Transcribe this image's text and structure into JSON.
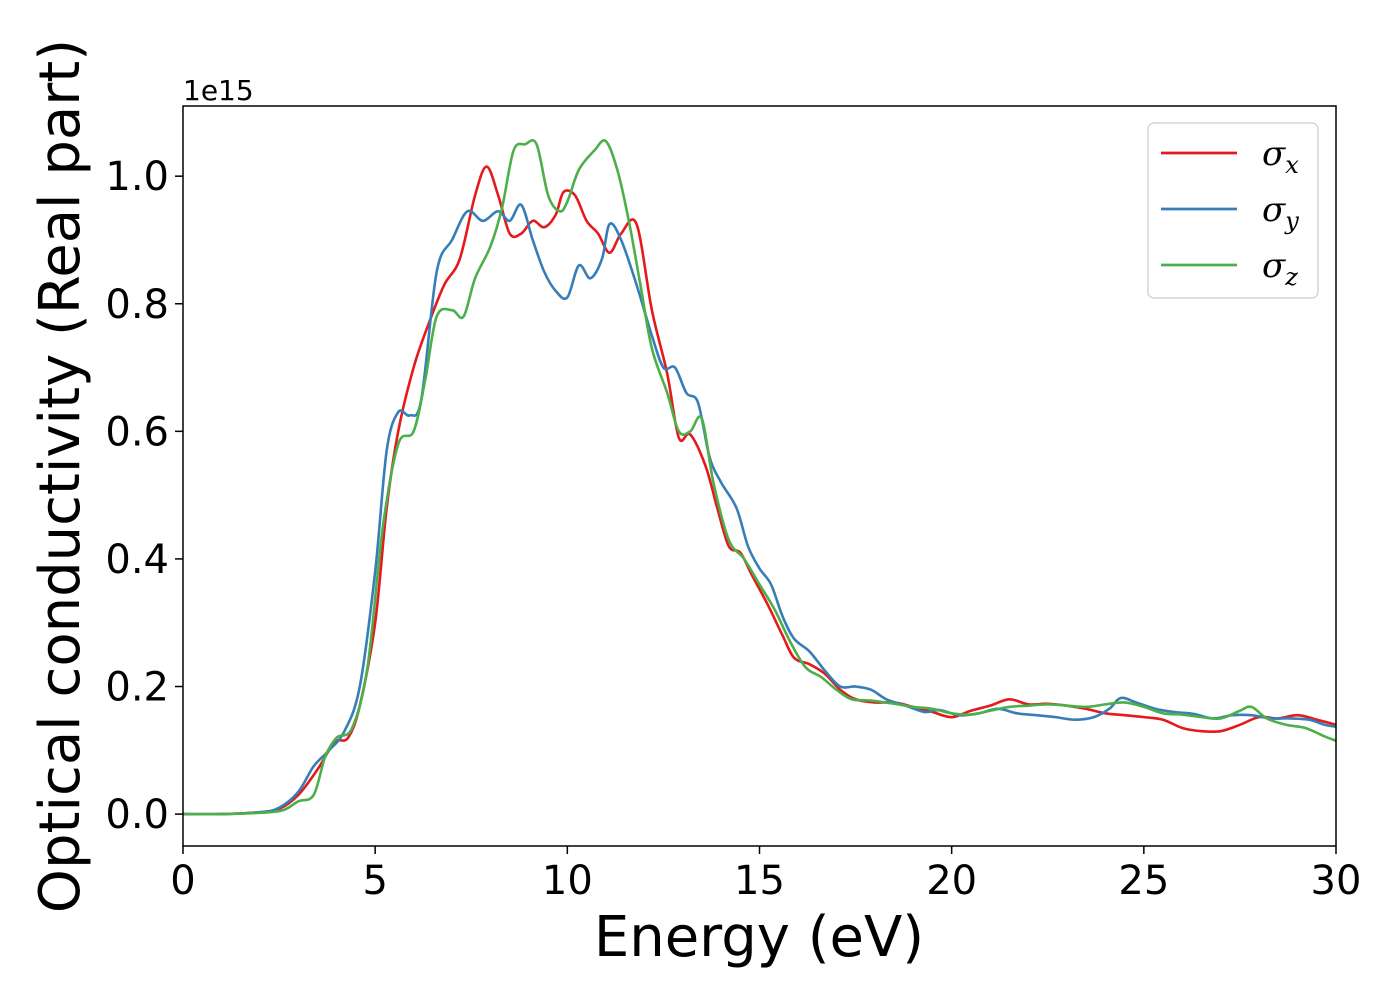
{
  "chart_data": {
    "type": "line",
    "xlabel": "Energy (eV)",
    "ylabel": "Optical conductivity (Real part)",
    "y_offset_text": "1e15",
    "xlim": [
      0,
      30
    ],
    "ylim": [
      -0.05,
      1.11
    ],
    "y_scale_factor": 1000000000000000.0,
    "x_ticks": [
      0,
      5,
      10,
      15,
      20,
      25,
      30
    ],
    "x_tick_labels": [
      "0",
      "5",
      "10",
      "15",
      "20",
      "25",
      "30"
    ],
    "y_ticks": [
      0.0,
      0.2,
      0.4,
      0.6,
      0.8,
      1.0
    ],
    "y_tick_labels": [
      "0.0",
      "0.2",
      "0.4",
      "0.6",
      "0.8",
      "1.0"
    ],
    "grid": false,
    "legend_position": "top-right",
    "colors": {
      "red": "#e41a1c",
      "blue": "#377eb8",
      "green": "#4daf4a"
    },
    "series": [
      {
        "name": "σ",
        "subscript": "x",
        "color": "#e41a1c",
        "points": [
          [
            0,
            0.0
          ],
          [
            1,
            0.0
          ],
          [
            2,
            0.003
          ],
          [
            2.5,
            0.008
          ],
          [
            3,
            0.03
          ],
          [
            3.5,
            0.07
          ],
          [
            3.8,
            0.1
          ],
          [
            4,
            0.115
          ],
          [
            4.3,
            0.12
          ],
          [
            4.6,
            0.17
          ],
          [
            5,
            0.3
          ],
          [
            5.3,
            0.48
          ],
          [
            5.6,
            0.6
          ],
          [
            6,
            0.7
          ],
          [
            6.4,
            0.77
          ],
          [
            6.8,
            0.83
          ],
          [
            7.2,
            0.87
          ],
          [
            7.6,
            0.97
          ],
          [
            7.9,
            1.015
          ],
          [
            8.2,
            0.97
          ],
          [
            8.5,
            0.91
          ],
          [
            8.8,
            0.91
          ],
          [
            9.1,
            0.93
          ],
          [
            9.4,
            0.92
          ],
          [
            9.7,
            0.94
          ],
          [
            9.9,
            0.975
          ],
          [
            10.2,
            0.97
          ],
          [
            10.5,
            0.93
          ],
          [
            10.8,
            0.91
          ],
          [
            11.1,
            0.88
          ],
          [
            11.4,
            0.91
          ],
          [
            11.8,
            0.925
          ],
          [
            12.2,
            0.79
          ],
          [
            12.6,
            0.69
          ],
          [
            12.9,
            0.59
          ],
          [
            13.2,
            0.595
          ],
          [
            13.6,
            0.545
          ],
          [
            13.9,
            0.48
          ],
          [
            14.2,
            0.42
          ],
          [
            14.5,
            0.41
          ],
          [
            14.8,
            0.375
          ],
          [
            15.2,
            0.33
          ],
          [
            15.6,
            0.28
          ],
          [
            15.9,
            0.245
          ],
          [
            16.3,
            0.235
          ],
          [
            16.7,
            0.22
          ],
          [
            17.1,
            0.195
          ],
          [
            17.5,
            0.18
          ],
          [
            18,
            0.175
          ],
          [
            18.5,
            0.175
          ],
          [
            19,
            0.168
          ],
          [
            19.5,
            0.16
          ],
          [
            20,
            0.152
          ],
          [
            20.5,
            0.162
          ],
          [
            21,
            0.17
          ],
          [
            21.5,
            0.18
          ],
          [
            22,
            0.172
          ],
          [
            22.5,
            0.173
          ],
          [
            23,
            0.17
          ],
          [
            23.5,
            0.165
          ],
          [
            24,
            0.158
          ],
          [
            24.5,
            0.155
          ],
          [
            25,
            0.152
          ],
          [
            25.5,
            0.148
          ],
          [
            26,
            0.135
          ],
          [
            26.5,
            0.13
          ],
          [
            27,
            0.13
          ],
          [
            27.5,
            0.14
          ],
          [
            28,
            0.152
          ],
          [
            28.5,
            0.15
          ],
          [
            29,
            0.155
          ],
          [
            29.5,
            0.148
          ],
          [
            30,
            0.14
          ]
        ]
      },
      {
        "name": "σ",
        "subscript": "y",
        "color": "#377eb8",
        "points": [
          [
            0,
            0.0
          ],
          [
            1,
            0.0
          ],
          [
            2,
            0.003
          ],
          [
            2.5,
            0.01
          ],
          [
            3,
            0.035
          ],
          [
            3.4,
            0.075
          ],
          [
            3.8,
            0.1
          ],
          [
            4.2,
            0.13
          ],
          [
            4.6,
            0.2
          ],
          [
            5,
            0.38
          ],
          [
            5.3,
            0.57
          ],
          [
            5.6,
            0.63
          ],
          [
            5.9,
            0.625
          ],
          [
            6.2,
            0.65
          ],
          [
            6.6,
            0.85
          ],
          [
            7,
            0.9
          ],
          [
            7.4,
            0.945
          ],
          [
            7.8,
            0.93
          ],
          [
            8.2,
            0.945
          ],
          [
            8.5,
            0.93
          ],
          [
            8.8,
            0.955
          ],
          [
            9.1,
            0.9
          ],
          [
            9.4,
            0.85
          ],
          [
            9.7,
            0.82
          ],
          [
            10,
            0.81
          ],
          [
            10.3,
            0.86
          ],
          [
            10.6,
            0.84
          ],
          [
            10.9,
            0.87
          ],
          [
            11.1,
            0.925
          ],
          [
            11.4,
            0.9
          ],
          [
            11.8,
            0.83
          ],
          [
            12.2,
            0.75
          ],
          [
            12.5,
            0.7
          ],
          [
            12.8,
            0.7
          ],
          [
            13.1,
            0.66
          ],
          [
            13.4,
            0.645
          ],
          [
            13.7,
            0.56
          ],
          [
            14,
            0.52
          ],
          [
            14.4,
            0.48
          ],
          [
            14.7,
            0.42
          ],
          [
            15,
            0.385
          ],
          [
            15.3,
            0.36
          ],
          [
            15.6,
            0.31
          ],
          [
            15.9,
            0.275
          ],
          [
            16.3,
            0.255
          ],
          [
            16.7,
            0.225
          ],
          [
            17.1,
            0.2
          ],
          [
            17.5,
            0.2
          ],
          [
            17.9,
            0.195
          ],
          [
            18.3,
            0.18
          ],
          [
            18.8,
            0.17
          ],
          [
            19.3,
            0.16
          ],
          [
            19.7,
            0.163
          ],
          [
            20.2,
            0.155
          ],
          [
            20.7,
            0.158
          ],
          [
            21.2,
            0.165
          ],
          [
            21.7,
            0.158
          ],
          [
            22.2,
            0.155
          ],
          [
            22.7,
            0.152
          ],
          [
            23.2,
            0.148
          ],
          [
            23.7,
            0.152
          ],
          [
            24.1,
            0.165
          ],
          [
            24.4,
            0.182
          ],
          [
            24.8,
            0.175
          ],
          [
            25.3,
            0.165
          ],
          [
            25.8,
            0.16
          ],
          [
            26.3,
            0.157
          ],
          [
            26.8,
            0.15
          ],
          [
            27.3,
            0.155
          ],
          [
            27.8,
            0.155
          ],
          [
            28.3,
            0.15
          ],
          [
            28.8,
            0.15
          ],
          [
            29.3,
            0.148
          ],
          [
            29.7,
            0.14
          ],
          [
            30,
            0.137
          ]
        ]
      },
      {
        "name": "σ",
        "subscript": "z",
        "color": "#4daf4a",
        "points": [
          [
            0,
            0.0
          ],
          [
            1,
            0.0
          ],
          [
            2,
            0.002
          ],
          [
            2.6,
            0.006
          ],
          [
            3,
            0.02
          ],
          [
            3.4,
            0.03
          ],
          [
            3.7,
            0.09
          ],
          [
            4,
            0.12
          ],
          [
            4.4,
            0.135
          ],
          [
            4.8,
            0.23
          ],
          [
            5.2,
            0.45
          ],
          [
            5.6,
            0.58
          ],
          [
            6,
            0.6
          ],
          [
            6.3,
            0.68
          ],
          [
            6.6,
            0.78
          ],
          [
            7,
            0.79
          ],
          [
            7.3,
            0.78
          ],
          [
            7.6,
            0.84
          ],
          [
            8,
            0.89
          ],
          [
            8.3,
            0.95
          ],
          [
            8.6,
            1.04
          ],
          [
            8.9,
            1.05
          ],
          [
            9.2,
            1.05
          ],
          [
            9.5,
            0.97
          ],
          [
            9.8,
            0.945
          ],
          [
            10,
            0.96
          ],
          [
            10.3,
            1.01
          ],
          [
            10.7,
            1.04
          ],
          [
            11,
            1.055
          ],
          [
            11.3,
            1.01
          ],
          [
            11.6,
            0.93
          ],
          [
            11.9,
            0.83
          ],
          [
            12.2,
            0.73
          ],
          [
            12.6,
            0.66
          ],
          [
            12.9,
            0.6
          ],
          [
            13.2,
            0.6
          ],
          [
            13.5,
            0.62
          ],
          [
            13.8,
            0.52
          ],
          [
            14.2,
            0.43
          ],
          [
            14.6,
            0.4
          ],
          [
            15,
            0.36
          ],
          [
            15.4,
            0.32
          ],
          [
            15.8,
            0.27
          ],
          [
            16.2,
            0.23
          ],
          [
            16.6,
            0.215
          ],
          [
            17,
            0.195
          ],
          [
            17.4,
            0.18
          ],
          [
            17.9,
            0.178
          ],
          [
            18.5,
            0.173
          ],
          [
            19,
            0.168
          ],
          [
            19.5,
            0.165
          ],
          [
            20,
            0.158
          ],
          [
            20.5,
            0.156
          ],
          [
            21,
            0.162
          ],
          [
            21.5,
            0.168
          ],
          [
            22,
            0.17
          ],
          [
            22.5,
            0.172
          ],
          [
            23,
            0.17
          ],
          [
            23.5,
            0.168
          ],
          [
            24,
            0.172
          ],
          [
            24.5,
            0.175
          ],
          [
            25,
            0.168
          ],
          [
            25.5,
            0.158
          ],
          [
            26,
            0.156
          ],
          [
            26.5,
            0.152
          ],
          [
            27,
            0.15
          ],
          [
            27.5,
            0.162
          ],
          [
            27.8,
            0.168
          ],
          [
            28.2,
            0.15
          ],
          [
            28.7,
            0.14
          ],
          [
            29.2,
            0.135
          ],
          [
            29.7,
            0.122
          ],
          [
            30,
            0.115
          ]
        ]
      }
    ]
  }
}
